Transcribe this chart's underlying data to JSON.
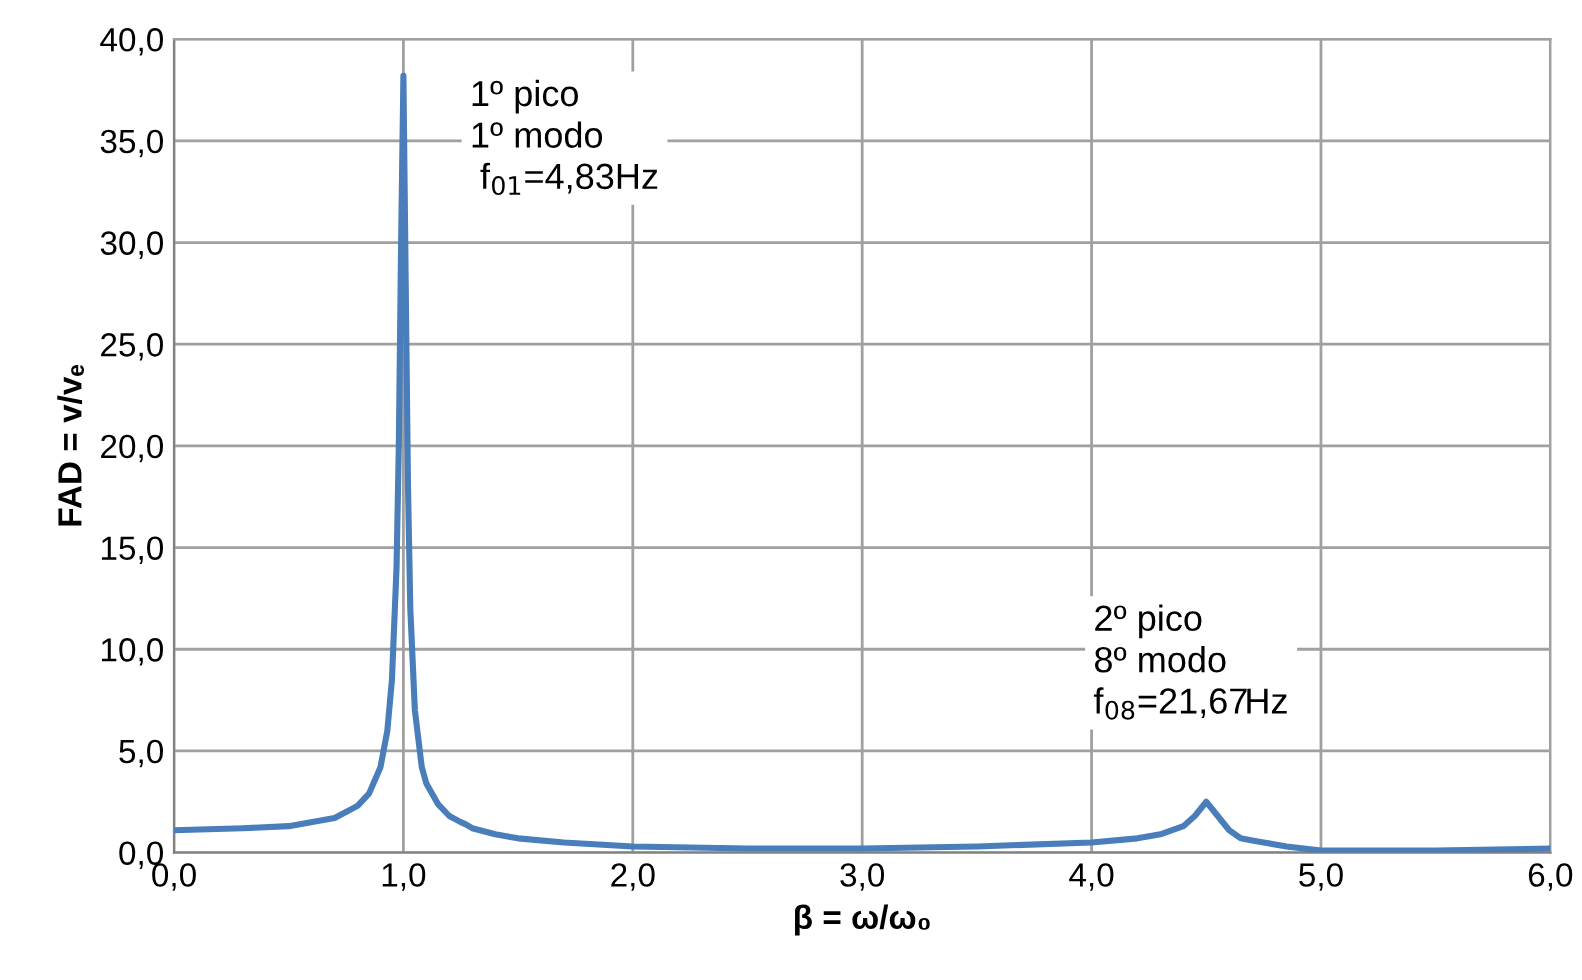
{
  "chart_data": {
    "type": "line",
    "xlabel": "β = ω/ω₀",
    "ylabel": "FAD = v/vₑ",
    "x": [
      0,
      0.3,
      0.5,
      0.7,
      0.8,
      0.85,
      0.9,
      0.93,
      0.95,
      0.97,
      0.98,
      0.99,
      1.0,
      1.01,
      1.02,
      1.03,
      1.05,
      1.08,
      1.1,
      1.15,
      1.2,
      1.25,
      1.27,
      1.3,
      1.4,
      1.5,
      1.7,
      2.0,
      2.5,
      3.0,
      3.5,
      4.0,
      4.2,
      4.3,
      4.4,
      4.45,
      4.5,
      4.55,
      4.6,
      4.65,
      4.7,
      4.75,
      4.85,
      5.0,
      5.5,
      6.0
    ],
    "series": [
      {
        "color": "#4a7ebb",
        "values": [
          1.1,
          1.2,
          1.3,
          1.7,
          2.3,
          2.9,
          4.2,
          6.0,
          8.5,
          14.0,
          20.0,
          30.0,
          38.2,
          28.0,
          18.0,
          12.0,
          7.0,
          4.2,
          3.4,
          2.4,
          1.8,
          1.5,
          1.4,
          1.2,
          0.9,
          0.7,
          0.5,
          0.3,
          0.2,
          0.2,
          0.3,
          0.5,
          0.7,
          0.9,
          1.3,
          1.8,
          2.5,
          1.8,
          1.1,
          0.7,
          0.6,
          0.5,
          0.3,
          0.1,
          0.1,
          0.2
        ]
      }
    ],
    "xlim": [
      0,
      6
    ],
    "ylim": [
      0,
      40
    ],
    "xticks": [
      {
        "value": 0,
        "label": "0,0"
      },
      {
        "value": 1,
        "label": "1,0"
      },
      {
        "value": 2,
        "label": "2,0"
      },
      {
        "value": 3,
        "label": "3,0"
      },
      {
        "value": 4,
        "label": "4,0"
      },
      {
        "value": 5,
        "label": "5,0"
      },
      {
        "value": 6,
        "label": "6,0"
      }
    ],
    "yticks": [
      {
        "value": 0,
        "label": "0,0"
      },
      {
        "value": 5,
        "label": "5,0"
      },
      {
        "value": 10,
        "label": "10,0"
      },
      {
        "value": 15,
        "label": "15,0"
      },
      {
        "value": 20,
        "label": "20,0"
      },
      {
        "value": 25,
        "label": "25,0"
      },
      {
        "value": 30,
        "label": "30,0"
      },
      {
        "value": 35,
        "label": "35,0"
      },
      {
        "value": 40,
        "label": "40,0"
      }
    ],
    "grid": true,
    "marker": "none",
    "line_style": "solid",
    "annotations": [
      "1º pico\n1º modo\n f$_{01}$=4,83Hz",
      "2º pico\n8º modo\nf$_{08}$=21,67Hz"
    ]
  }
}
